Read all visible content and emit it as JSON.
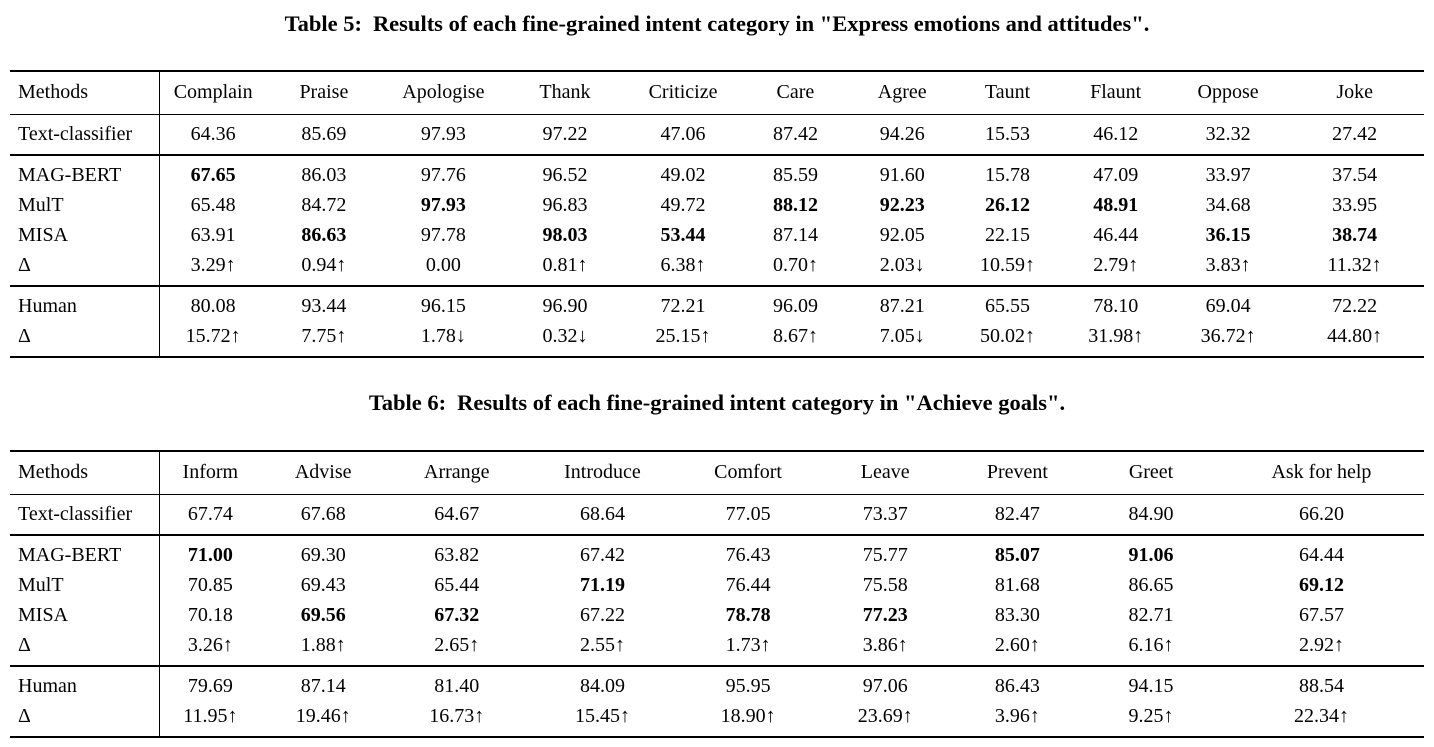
{
  "colors": {
    "background": "#ffffff",
    "text": "#000000",
    "rule": "#000000"
  },
  "tables": [
    {
      "id": "table5",
      "caption_label": "Table 5:",
      "caption_text": "Results of each fine-grained intent category in \"Express emotions and attitudes\".",
      "columns": [
        "Methods",
        "Complain",
        "Praise",
        "Apologise",
        "Thank",
        "Criticize",
        "Care",
        "Agree",
        "Taunt",
        "Flaunt",
        "Oppose",
        "Joke"
      ],
      "col_widths": [
        "10.6%",
        "7.5%",
        "8.2%",
        "8.7%",
        "8.5%",
        "8.2%",
        "7.7%",
        "7.4%",
        "7.5%",
        "7.8%",
        "8.1%",
        "9.8%"
      ],
      "sections": [
        {
          "rows": [
            {
              "method": "Text-classifier",
              "values": [
                "64.36",
                "85.69",
                "97.93",
                "97.22",
                "47.06",
                "87.42",
                "94.26",
                "15.53",
                "46.12",
                "32.32",
                "27.42"
              ],
              "bold": []
            }
          ]
        },
        {
          "rows": [
            {
              "method": "MAG-BERT",
              "values": [
                "67.65",
                "86.03",
                "97.76",
                "96.52",
                "49.02",
                "85.59",
                "91.60",
                "15.78",
                "47.09",
                "33.97",
                "37.54"
              ],
              "bold": [
                0
              ]
            },
            {
              "method": "MulT",
              "values": [
                "65.48",
                "84.72",
                "97.93",
                "96.83",
                "49.72",
                "88.12",
                "92.23",
                "26.12",
                "48.91",
                "34.68",
                "33.95"
              ],
              "bold": [
                2,
                5,
                6,
                7,
                8
              ]
            },
            {
              "method": "MISA",
              "values": [
                "63.91",
                "86.63",
                "97.78",
                "98.03",
                "53.44",
                "87.14",
                "92.05",
                "22.15",
                "46.44",
                "36.15",
                "38.74"
              ],
              "bold": [
                1,
                3,
                4,
                9,
                10
              ]
            },
            {
              "method": "Δ",
              "values": [
                "3.29↑",
                "0.94↑",
                "0.00",
                "0.81↑",
                "6.38↑",
                "0.70↑",
                "2.03↓",
                "10.59↑",
                "2.79↑",
                "3.83↑",
                "11.32↑"
              ],
              "bold": []
            }
          ]
        },
        {
          "rows": [
            {
              "method": "Human",
              "values": [
                "80.08",
                "93.44",
                "96.15",
                "96.90",
                "72.21",
                "96.09",
                "87.21",
                "65.55",
                "78.10",
                "69.04",
                "72.22"
              ],
              "bold": []
            },
            {
              "method": "Δ",
              "values": [
                "15.72↑",
                "7.75↑",
                "1.78↓",
                "0.32↓",
                "25.15↑",
                "8.67↑",
                "7.05↓",
                "50.02↑",
                "31.98↑",
                "36.72↑",
                "44.80↑"
              ],
              "bold": []
            }
          ]
        }
      ]
    },
    {
      "id": "table6",
      "caption_label": "Table 6:",
      "caption_text": "Results of each fine-grained intent category in \"Achieve goals\".",
      "columns": [
        "Methods",
        "Inform",
        "Advise",
        "Arrange",
        "Introduce",
        "Comfort",
        "Leave",
        "Prevent",
        "Greet",
        "Ask for help"
      ],
      "col_widths": [
        "10.6%",
        "7.1%",
        "8.9%",
        "10.0%",
        "10.6%",
        "10.0%",
        "9.4%",
        "9.3%",
        "9.6%",
        "14.5%"
      ],
      "sections": [
        {
          "rows": [
            {
              "method": "Text-classifier",
              "values": [
                "67.74",
                "67.68",
                "64.67",
                "68.64",
                "77.05",
                "73.37",
                "82.47",
                "84.90",
                "66.20"
              ],
              "bold": []
            }
          ]
        },
        {
          "rows": [
            {
              "method": "MAG-BERT",
              "values": [
                "71.00",
                "69.30",
                "63.82",
                "67.42",
                "76.43",
                "75.77",
                "85.07",
                "91.06",
                "64.44"
              ],
              "bold": [
                0,
                6,
                7
              ]
            },
            {
              "method": "MulT",
              "values": [
                "70.85",
                "69.43",
                "65.44",
                "71.19",
                "76.44",
                "75.58",
                "81.68",
                "86.65",
                "69.12"
              ],
              "bold": [
                3,
                8
              ]
            },
            {
              "method": "MISA",
              "values": [
                "70.18",
                "69.56",
                "67.32",
                "67.22",
                "78.78",
                "77.23",
                "83.30",
                "82.71",
                "67.57"
              ],
              "bold": [
                1,
                2,
                4,
                5
              ]
            },
            {
              "method": "Δ",
              "values": [
                "3.26↑",
                "1.88↑",
                "2.65↑",
                "2.55↑",
                "1.73↑",
                "3.86↑",
                "2.60↑",
                "6.16↑",
                "2.92↑"
              ],
              "bold": []
            }
          ]
        },
        {
          "rows": [
            {
              "method": "Human",
              "values": [
                "79.69",
                "87.14",
                "81.40",
                "84.09",
                "95.95",
                "97.06",
                "86.43",
                "94.15",
                "88.54"
              ],
              "bold": []
            },
            {
              "method": "Δ",
              "values": [
                "11.95↑",
                "19.46↑",
                "16.73↑",
                "15.45↑",
                "18.90↑",
                "23.69↑",
                "3.96↑",
                "9.25↑",
                "22.34↑"
              ],
              "bold": []
            }
          ]
        }
      ]
    }
  ]
}
